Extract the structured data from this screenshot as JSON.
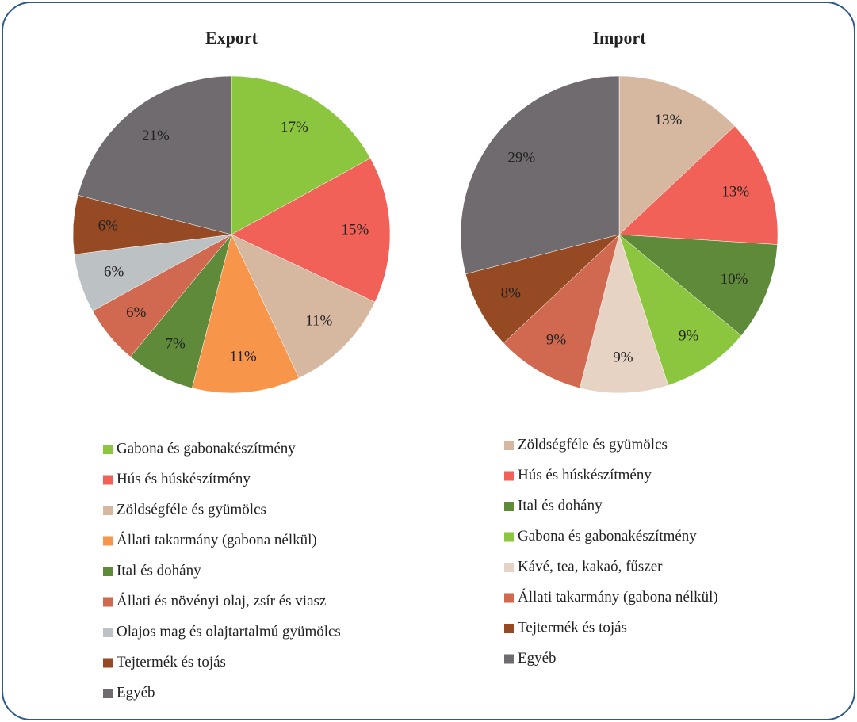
{
  "chart_data": [
    {
      "type": "pie",
      "title": "Export",
      "categories": [
        "Gabona és gabonakészítmény",
        "Hús és húskészítmény",
        "Zöldségféle és gyümölcs",
        "Állati takarmány (gabona nélkül)",
        "Ital és dohány",
        "Állati és növényi olaj, zsír és viasz",
        "Olajos mag és olajtartalmú gyümölcs",
        "Tejtermék és tojás",
        "Egyéb"
      ],
      "values": [
        17,
        15,
        11,
        11,
        7,
        6,
        6,
        6,
        21
      ],
      "value_labels": [
        "17%",
        "15%",
        "11%",
        "11%",
        "7%",
        "6%",
        "6%",
        "6%",
        "21%"
      ],
      "colors": [
        "#8cc63f",
        "#f26157",
        "#d6b8a0",
        "#f7964a",
        "#5f8a3a",
        "#d0694f",
        "#bcc1c4",
        "#954a24",
        "#6f6b6e"
      ]
    },
    {
      "type": "pie",
      "title": "Import",
      "categories": [
        "Zöldségféle és gyümölcs",
        "Hús és húskészítmény",
        "Ital és dohány",
        "Gabona és gabonakészítmény",
        "Kávé, tea, kakaó, fűszer",
        "Állati takarmány (gabona nélkül)",
        "Tejtermék és tojás",
        "Egyéb"
      ],
      "values": [
        13,
        13,
        10,
        9,
        9,
        9,
        8,
        29
      ],
      "value_labels": [
        "13%",
        "13%",
        "10%",
        "9%",
        "9%",
        "9%",
        "8%",
        "29%"
      ],
      "colors": [
        "#d6b8a0",
        "#f26157",
        "#5f8a3a",
        "#8cc63f",
        "#e6d3c4",
        "#d0694f",
        "#954a24",
        "#6f6b6e"
      ]
    }
  ]
}
